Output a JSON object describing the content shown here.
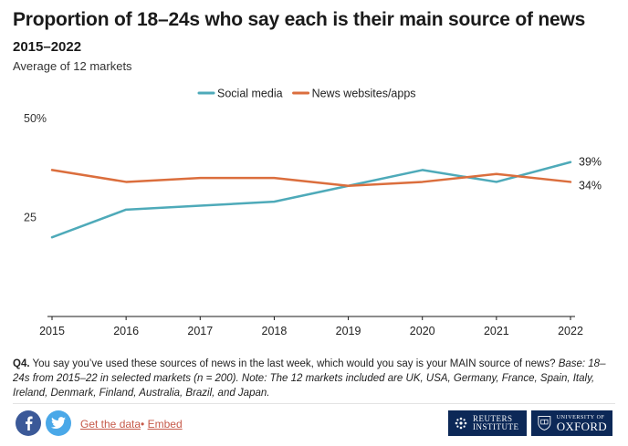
{
  "chart_data": {
    "type": "line",
    "title": "Proportion of 18–24s who say each is their main source of news",
    "subtitle": "2015–2022",
    "caption": "Average of 12 markets",
    "x": [
      "2015",
      "2016",
      "2017",
      "2018",
      "2019",
      "2020",
      "2021",
      "2022"
    ],
    "series": [
      {
        "name": "Social media",
        "color": "#4eaab9",
        "values": [
          20,
          27,
          28,
          29,
          33,
          37,
          34,
          39
        ]
      },
      {
        "name": "News websites/apps",
        "color": "#db6e3d",
        "values": [
          37,
          34,
          35,
          35,
          33,
          34,
          36,
          34
        ]
      }
    ],
    "end_labels": [
      "39%",
      "34%"
    ],
    "y_ticks": [
      25,
      50
    ],
    "y_tick_labels": [
      "25",
      "50%"
    ],
    "ylim": [
      0,
      50
    ],
    "legend_position": "top",
    "grid": false
  },
  "note": {
    "lead": "Q4.",
    "question": " You say you’ve used these sources of news in the last week, which would you say is your MAIN source of news? ",
    "italic": "Base: 18–24s from 2015–22 in selected markets (n = 200). Note: The 12 markets included are UK, USA, Germany, France, Spain, Italy, Ireland, Denmark, Finland, Australia, Brazil, and Japan."
  },
  "footer": {
    "facebook_icon": "facebook-icon",
    "twitter_icon": "twitter-icon",
    "get_data_label": "Get the data",
    "separator": "•",
    "embed_label": "Embed",
    "logo_reuters_line1": "REUTERS",
    "logo_reuters_line2": "INSTITUTE",
    "logo_oxford_line1": "UNIVERSITY OF",
    "logo_oxford_line2": "OXFORD"
  }
}
